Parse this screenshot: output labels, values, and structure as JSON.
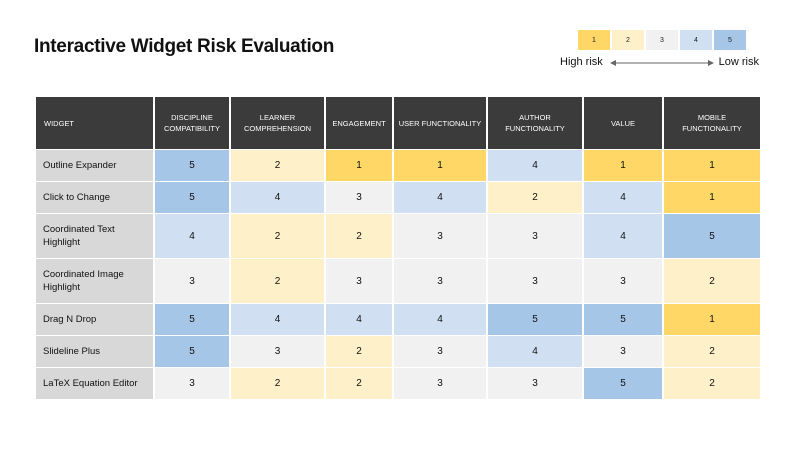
{
  "title": "Interactive Widget Risk Evaluation",
  "legend": {
    "swatches": [
      {
        "label": "1",
        "color": "#fed767"
      },
      {
        "label": "2",
        "color": "#fef1c9"
      },
      {
        "label": "3",
        "color": "#f1f1f1"
      },
      {
        "label": "4",
        "color": "#d0dff1"
      },
      {
        "label": "5",
        "color": "#a6c6e7"
      }
    ],
    "high_label": "High risk",
    "low_label": "Low risk",
    "arrow": "←————————→"
  },
  "table": {
    "headers": [
      "WIDGET",
      "DISCIPLINE COMPATIBILITY",
      "LEARNER COMPREHENSION",
      "ENGAGEMENT",
      "USER FUNCTIONALITY",
      "AUTHOR FUNCTIONALITY",
      "VALUE",
      "MOBILE FUNCTIONALITY"
    ],
    "rows": [
      {
        "widget": "Outline Expander",
        "values": [
          "5",
          "2",
          "1",
          "1",
          "4",
          "1",
          "1"
        ]
      },
      {
        "widget": "Click to Change",
        "values": [
          "5",
          "4",
          "3",
          "4",
          "2",
          "4",
          "1"
        ]
      },
      {
        "widget": "Coordinated Text Highlight",
        "values": [
          "4",
          "2",
          "2",
          "3",
          "3",
          "4",
          "5"
        ]
      },
      {
        "widget": "Coordinated Image Highlight",
        "values": [
          "3",
          "2",
          "3",
          "3",
          "3",
          "3",
          "2"
        ]
      },
      {
        "widget": "Drag N Drop",
        "values": [
          "5",
          "4",
          "4",
          "4",
          "5",
          "5",
          "1"
        ]
      },
      {
        "widget": "Slideline Plus",
        "values": [
          "5",
          "3",
          "2",
          "3",
          "4",
          "3",
          "2"
        ]
      },
      {
        "widget": "LaTeX Equation Editor",
        "values": [
          "3",
          "2",
          "2",
          "3",
          "3",
          "5",
          "2"
        ]
      }
    ]
  }
}
